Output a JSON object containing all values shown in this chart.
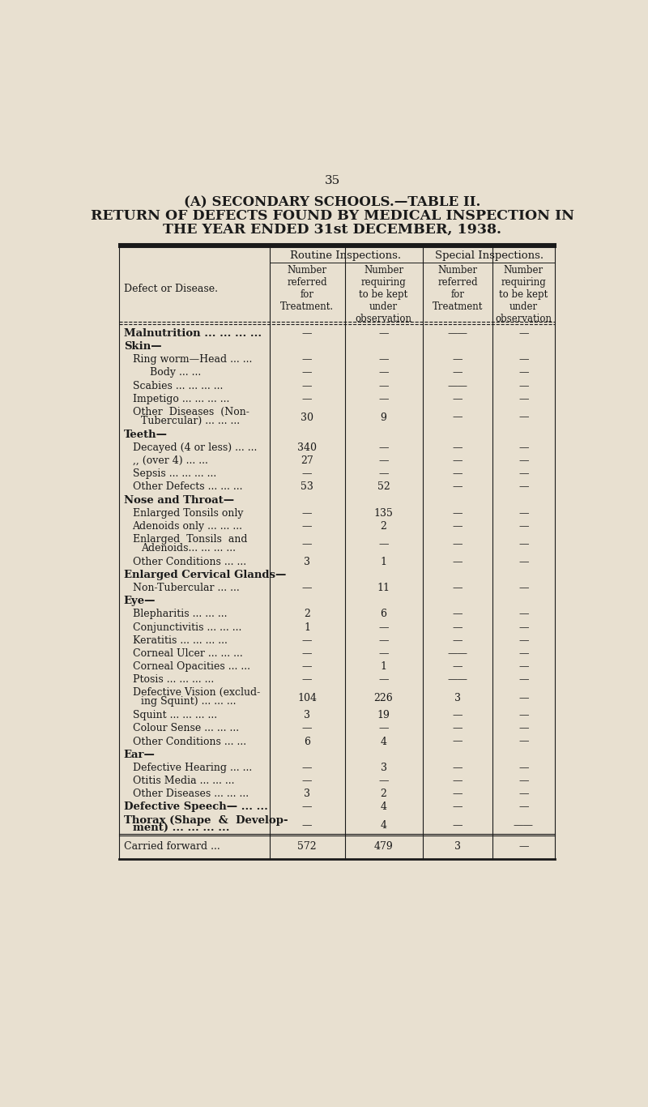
{
  "page_number": "35",
  "title_line1": "(A) SECONDARY SCHOOLS.—TABLE II.",
  "title_line2": "RETURN OF DEFECTS FOUND BY MEDICAL INSPECTION IN",
  "title_line3": "THE YEAR ENDED 31st DECEMBER, 1938.",
  "bg_color": "#e8e0d0",
  "text_color": "#1a1a1a",
  "col_headers_top": [
    "Routine Inspections.",
    "Special Inspections."
  ],
  "col_headers_sub": [
    "Number\nreferred\nfor\nTreatment.",
    "Number\nrequiring\nto be kept\nunder\nobservation",
    "Number\nreferred\nfor\nTreatment",
    "Number\nrequiring\nto be kept\nunder\nobservation"
  ],
  "row_label_header": "Defect or Disease.",
  "rows": [
    {
      "label": "Malnutrition ... ... ... ...",
      "bold": true,
      "indent": 0,
      "multiline": false,
      "vals": [
        "—",
        "—",
        "——",
        "—"
      ]
    },
    {
      "label": "Skin—",
      "bold": true,
      "indent": 0,
      "multiline": false,
      "vals": [
        "",
        "",
        "",
        ""
      ]
    },
    {
      "label": "Ring worm—Head ... ...",
      "bold": false,
      "indent": 1,
      "multiline": false,
      "vals": [
        "—",
        "—",
        "—",
        "—"
      ]
    },
    {
      "label": "Body ... ...",
      "bold": false,
      "indent": 3,
      "multiline": false,
      "vals": [
        "—",
        "—",
        "—",
        "—"
      ]
    },
    {
      "label": "Scabies ... ... ... ...",
      "bold": false,
      "indent": 1,
      "multiline": false,
      "vals": [
        "—",
        "—",
        "——",
        "—"
      ]
    },
    {
      "label": "Impetigo ... ... ... ...",
      "bold": false,
      "indent": 1,
      "multiline": false,
      "vals": [
        "—",
        "—",
        "—",
        "—"
      ]
    },
    {
      "label": "Other  Diseases  (Non-",
      "bold": false,
      "indent": 1,
      "multiline": true,
      "line2": "Tubercular) ... ... ...",
      "indent2": 2,
      "vals": [
        "30",
        "9",
        "—",
        "—"
      ]
    },
    {
      "label": "Teeth—",
      "bold": true,
      "indent": 0,
      "multiline": false,
      "vals": [
        "",
        "",
        "",
        ""
      ]
    },
    {
      "label": "Decayed (4 or less) ... ...",
      "bold": false,
      "indent": 1,
      "multiline": false,
      "vals": [
        "340",
        "—",
        "—",
        "—"
      ]
    },
    {
      "label": ",, (over 4) ... ...",
      "bold": false,
      "indent": 1,
      "multiline": false,
      "vals": [
        "27",
        "—",
        "—",
        "—"
      ]
    },
    {
      "label": "Sepsis ... ... ... ...",
      "bold": false,
      "indent": 1,
      "multiline": false,
      "vals": [
        "—",
        "—",
        "—",
        "—"
      ]
    },
    {
      "label": "Other Defects ... ... ...",
      "bold": false,
      "indent": 1,
      "multiline": false,
      "vals": [
        "53",
        "52",
        "—",
        "—"
      ]
    },
    {
      "label": "Nose and Throat—",
      "bold": true,
      "indent": 0,
      "multiline": false,
      "vals": [
        "",
        "",
        "",
        ""
      ]
    },
    {
      "label": "Enlarged Tonsils only",
      "bold": false,
      "indent": 1,
      "multiline": false,
      "vals": [
        "—",
        "135",
        "—",
        "—"
      ]
    },
    {
      "label": "Adenoids only ... ... ...",
      "bold": false,
      "indent": 1,
      "multiline": false,
      "vals": [
        "—",
        "2",
        "—",
        "—"
      ]
    },
    {
      "label": "Enlarged  Tonsils  and",
      "bold": false,
      "indent": 1,
      "multiline": true,
      "line2": "Adenoids... ... ... ...",
      "indent2": 2,
      "vals": [
        "—",
        "—",
        "—",
        "—"
      ]
    },
    {
      "label": "Other Conditions ... ...",
      "bold": false,
      "indent": 1,
      "multiline": false,
      "vals": [
        "3",
        "1",
        "—",
        "—"
      ]
    },
    {
      "label": "Enlarged Cervical Glands—",
      "bold": true,
      "indent": 0,
      "multiline": false,
      "vals": [
        "",
        "",
        "",
        ""
      ]
    },
    {
      "label": "Non-Tubercular ... ...",
      "bold": false,
      "indent": 1,
      "multiline": false,
      "vals": [
        "—",
        "11",
        "—",
        "—"
      ]
    },
    {
      "label": "Eye—",
      "bold": true,
      "indent": 0,
      "multiline": false,
      "vals": [
        "",
        "",
        "",
        ""
      ]
    },
    {
      "label": "Blepharitis ... ... ...",
      "bold": false,
      "indent": 1,
      "multiline": false,
      "vals": [
        "2",
        "6",
        "—",
        "—"
      ]
    },
    {
      "label": "Conjunctivitis ... ... ...",
      "bold": false,
      "indent": 1,
      "multiline": false,
      "vals": [
        "1",
        "—",
        "—",
        "—"
      ]
    },
    {
      "label": "Keratitis ... ... ... ...",
      "bold": false,
      "indent": 1,
      "multiline": false,
      "vals": [
        "—",
        "—",
        "—",
        "—"
      ]
    },
    {
      "label": "Corneal Ulcer ... ... ...",
      "bold": false,
      "indent": 1,
      "multiline": false,
      "vals": [
        "—",
        "—",
        "——",
        "—"
      ]
    },
    {
      "label": "Corneal Opacities ... ...",
      "bold": false,
      "indent": 1,
      "multiline": false,
      "vals": [
        "—",
        "1",
        "—",
        "—"
      ]
    },
    {
      "label": "Ptosis ... ... ... ...",
      "bold": false,
      "indent": 1,
      "multiline": false,
      "vals": [
        "—",
        "—",
        "——",
        "—"
      ]
    },
    {
      "label": "Defective Vision (exclud-",
      "bold": false,
      "indent": 1,
      "multiline": true,
      "line2": "ing Squint) ... ... ...",
      "indent2": 2,
      "vals": [
        "104",
        "226",
        "3",
        "—"
      ]
    },
    {
      "label": "Squint ... ... ... ...",
      "bold": false,
      "indent": 1,
      "multiline": false,
      "vals": [
        "3",
        "19",
        "—",
        "—"
      ]
    },
    {
      "label": "Colour Sense ... ... ...",
      "bold": false,
      "indent": 1,
      "multiline": false,
      "vals": [
        "—",
        "—",
        "—",
        "—"
      ]
    },
    {
      "label": "Other Conditions ... ...",
      "bold": false,
      "indent": 1,
      "multiline": false,
      "vals": [
        "6",
        "4",
        "—",
        "—"
      ]
    },
    {
      "label": "Ear—",
      "bold": true,
      "indent": 0,
      "multiline": false,
      "vals": [
        "",
        "",
        "",
        ""
      ]
    },
    {
      "label": "Defective Hearing ... ...",
      "bold": false,
      "indent": 1,
      "multiline": false,
      "vals": [
        "—",
        "3",
        "—",
        "—"
      ]
    },
    {
      "label": "Otitis Media ... ... ...",
      "bold": false,
      "indent": 1,
      "multiline": false,
      "vals": [
        "—",
        "—",
        "—",
        "—"
      ]
    },
    {
      "label": "Other Diseases ... ... ...",
      "bold": false,
      "indent": 1,
      "multiline": false,
      "vals": [
        "3",
        "2",
        "—",
        "—"
      ]
    },
    {
      "label": "Defective Speech— ... ...",
      "bold": true,
      "indent": 0,
      "multiline": false,
      "vals": [
        "—",
        "4",
        "—",
        "—"
      ]
    },
    {
      "label": "Thorax (Shape  &  Develop-",
      "bold": true,
      "indent": 0,
      "multiline": true,
      "line2": "ment) ... ... ... ...",
      "indent2": 1,
      "vals": [
        "—",
        "4",
        "—",
        "——"
      ]
    },
    {
      "label": "Carried forward ...",
      "bold": false,
      "indent": 0,
      "multiline": false,
      "vals": [
        "572",
        "479",
        "3",
        "—"
      ],
      "footer": true
    }
  ]
}
